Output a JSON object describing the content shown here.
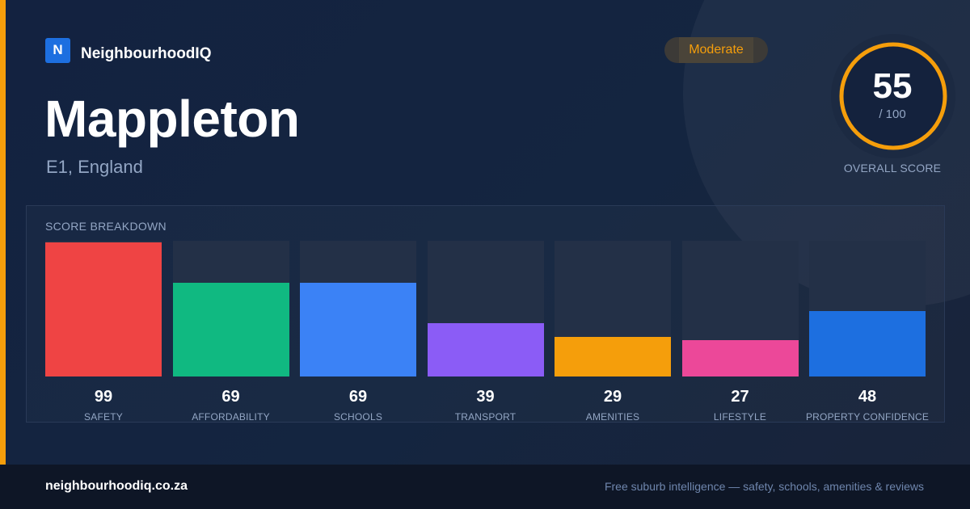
{
  "brand": {
    "logo_letter": "N",
    "name": "NeighbourhoodIQ",
    "accent": "#f59e0b",
    "logo_color": "#1d6fe0"
  },
  "suburb": {
    "name": "Mappleton",
    "location": "E1, England"
  },
  "rating": {
    "badge": "Moderate",
    "score": "55",
    "max": "/ 100",
    "caption": "OVERALL SCORE",
    "score_fraction": 0.55
  },
  "breakdown": {
    "title": "SCORE BREAKDOWN",
    "items": [
      {
        "label": "SAFETY",
        "value": 99,
        "color": "#ef4444"
      },
      {
        "label": "AFFORDABILITY",
        "value": 69,
        "color": "#10b981"
      },
      {
        "label": "SCHOOLS",
        "value": 69,
        "color": "#3b82f6"
      },
      {
        "label": "TRANSPORT",
        "value": 39,
        "color": "#8b5cf6"
      },
      {
        "label": "AMENITIES",
        "value": 29,
        "color": "#f59e0b"
      },
      {
        "label": "LIFESTYLE",
        "value": 27,
        "color": "#ec4899"
      },
      {
        "label": "PROPERTY CONFIDENCE",
        "value": 48,
        "color": "#1d6fe0"
      }
    ]
  },
  "chart_data": {
    "type": "bar",
    "categories": [
      "SAFETY",
      "AFFORDABILITY",
      "SCHOOLS",
      "TRANSPORT",
      "AMENITIES",
      "LIFESTYLE",
      "PROPERTY CONFIDENCE"
    ],
    "values": [
      99,
      69,
      69,
      39,
      29,
      27,
      48
    ],
    "title": "SCORE BREAKDOWN",
    "ylim": [
      0,
      100
    ],
    "grid": false
  },
  "footer": {
    "domain": "neighbourhoodiq.co.za",
    "tagline": "Free suburb intelligence — safety, schools, amenities & reviews"
  }
}
